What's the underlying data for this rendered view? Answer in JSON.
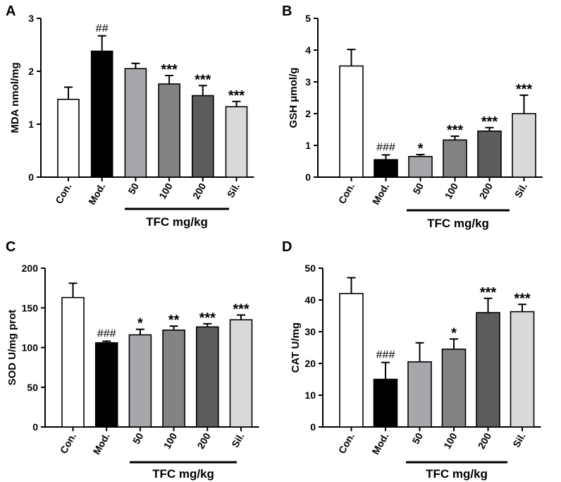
{
  "chart_data": [
    {
      "type": "bar",
      "panel": "A",
      "ylabel": "MDA nmol/mg",
      "ylim": [
        0,
        3
      ],
      "yticks": [
        0,
        1,
        2,
        3
      ],
      "categories": [
        "Con.",
        "Mod.",
        "50",
        "100",
        "200",
        "Sil."
      ],
      "group_label": "TFC mg/kg",
      "values": [
        1.47,
        2.38,
        2.05,
        1.76,
        1.54,
        1.33
      ],
      "errors": [
        0.23,
        0.29,
        0.1,
        0.16,
        0.19,
        0.1
      ],
      "significance": [
        "",
        "##",
        "",
        "***",
        "***",
        "***"
      ],
      "colors": [
        "#ffffff",
        "#000000",
        "#a7a7ab",
        "#838383",
        "#5c5c5c",
        "#d9d9d9"
      ]
    },
    {
      "type": "bar",
      "panel": "B",
      "ylabel": "GSH  μmol/g",
      "ylim": [
        0,
        5
      ],
      "yticks": [
        0,
        1,
        2,
        3,
        4,
        5
      ],
      "categories": [
        "Con.",
        "Mod.",
        "50",
        "100",
        "200",
        "Sil."
      ],
      "group_label": "TFC mg/kg",
      "values": [
        3.5,
        0.55,
        0.65,
        1.17,
        1.45,
        2.0
      ],
      "errors": [
        0.52,
        0.15,
        0.06,
        0.12,
        0.11,
        0.58
      ],
      "significance": [
        "",
        "###",
        "*",
        "***",
        "***",
        "***"
      ],
      "colors": [
        "#ffffff",
        "#000000",
        "#a7a7ab",
        "#838383",
        "#5c5c5c",
        "#d9d9d9"
      ]
    },
    {
      "type": "bar",
      "panel": "C",
      "ylabel": "SOD  U/mg prot",
      "ylim": [
        0,
        200
      ],
      "yticks": [
        0,
        50,
        100,
        150,
        200
      ],
      "categories": [
        "Con.",
        "Mod.",
        "50",
        "100",
        "200",
        "Sil."
      ],
      "group_label": "TFC mg/kg",
      "values": [
        163,
        106,
        116,
        122,
        126,
        135
      ],
      "errors": [
        18,
        2,
        7,
        5,
        4,
        6
      ],
      "significance": [
        "",
        "###",
        "*",
        "**",
        "***",
        "***"
      ],
      "colors": [
        "#ffffff",
        "#000000",
        "#a7a7ab",
        "#838383",
        "#5c5c5c",
        "#d9d9d9"
      ]
    },
    {
      "type": "bar",
      "panel": "D",
      "ylabel": "CAT U/mg",
      "ylim": [
        0,
        50
      ],
      "yticks": [
        0,
        10,
        20,
        30,
        40,
        50
      ],
      "categories": [
        "Con.",
        "Mod.",
        "50",
        "100",
        "200",
        "Sil."
      ],
      "group_label": "TFC mg/kg",
      "values": [
        42,
        15,
        20.5,
        24.5,
        36,
        36.3
      ],
      "errors": [
        5,
        5.3,
        6,
        3.2,
        4.5,
        2.3
      ],
      "significance": [
        "",
        "###",
        "",
        "*",
        "***",
        "***"
      ],
      "colors": [
        "#ffffff",
        "#000000",
        "#a7a7ab",
        "#838383",
        "#5c5c5c",
        "#d9d9d9"
      ]
    }
  ]
}
